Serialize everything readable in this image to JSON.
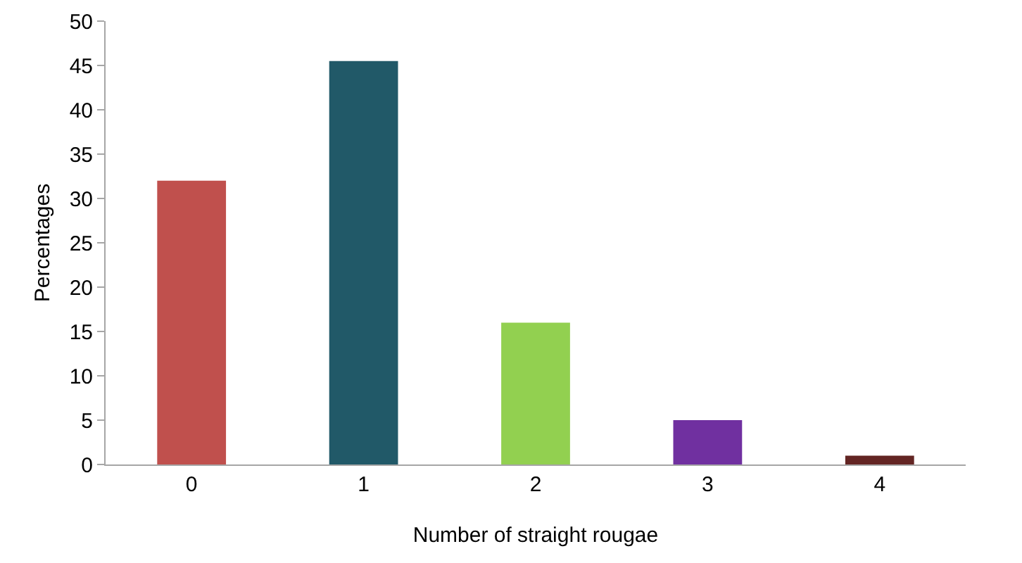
{
  "chart_data": {
    "type": "bar",
    "xlabel": "Number of straight rougae",
    "ylabel": "Percentages",
    "categories": [
      "0",
      "1",
      "2",
      "3",
      "4"
    ],
    "values": [
      32,
      45.5,
      16,
      5,
      1
    ],
    "colors": [
      "#c0504d",
      "#215968",
      "#92d050",
      "#7030a0",
      "#632523"
    ],
    "ylim": [
      0,
      50
    ],
    "yticks": [
      0,
      5,
      10,
      15,
      20,
      25,
      30,
      35,
      40,
      45,
      50
    ],
    "grid": false
  }
}
